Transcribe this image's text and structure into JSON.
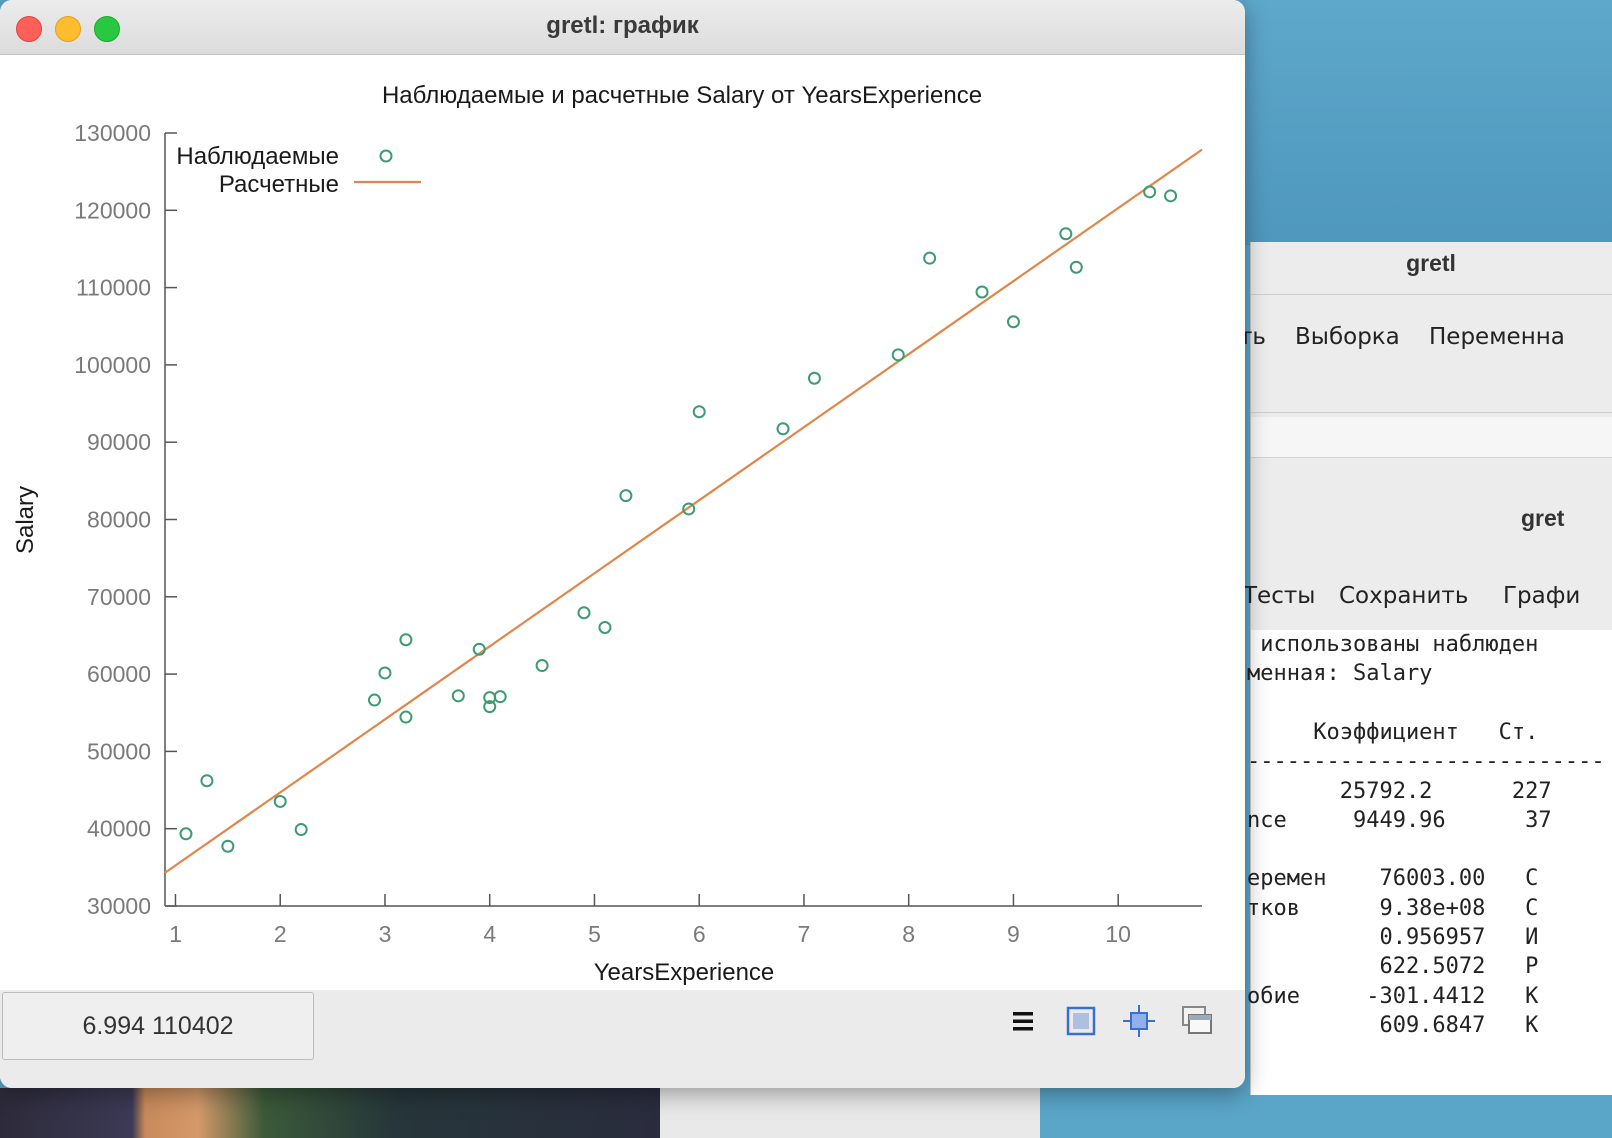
{
  "plot_window": {
    "title": "gretl: график",
    "coordinates": "6.994 110402",
    "toolbar_icons": [
      "menu-icon",
      "zoom-icon",
      "fit-icon",
      "windows-icon"
    ]
  },
  "background_main_window": {
    "title": "gretl",
    "menu": [
      "ть",
      "Выборка",
      "Переменна"
    ]
  },
  "background_model_window": {
    "title": "gret",
    "menu": [
      "Тесты",
      "Сохранить",
      "Графи"
    ],
    "output_lines": [
      " использованы наблюден",
      "менная: Salary",
      "",
      "     Коэффициент   Ст.",
      "---------------------------",
      "       25792.2      227",
      "nce     9449.96      37",
      "",
      "еремен    76003.00   С",
      "тков      9.38e+08   С",
      "          0.956957   И",
      "          622.5072   Р",
      "обие     -301.4412   К",
      "          609.6847   К"
    ]
  },
  "chart_data": {
    "type": "scatter",
    "title": "Наблюдаемые и расчетные Salary от YearsExperience",
    "xlabel": "YearsExperience",
    "ylabel": "Salary",
    "xlim": [
      0.9,
      10.8
    ],
    "ylim": [
      30000,
      130000
    ],
    "xticks": [
      1,
      2,
      3,
      4,
      5,
      6,
      7,
      8,
      9,
      10
    ],
    "yticks": [
      30000,
      40000,
      50000,
      60000,
      70000,
      80000,
      90000,
      100000,
      110000,
      120000,
      130000
    ],
    "legend_position": "top-left",
    "series": [
      {
        "name": "Наблюдаемые",
        "kind": "points",
        "color": "#3d9b73",
        "x": [
          1.1,
          1.3,
          1.5,
          2.0,
          2.2,
          2.9,
          3.0,
          3.2,
          3.2,
          3.7,
          3.9,
          4.0,
          4.0,
          4.1,
          4.5,
          4.9,
          5.1,
          5.3,
          5.9,
          6.0,
          6.8,
          7.1,
          7.9,
          8.2,
          8.7,
          9.0,
          9.5,
          9.6,
          10.3,
          10.5
        ],
        "y": [
          39343,
          46205,
          37731,
          43525,
          39891,
          56642,
          60150,
          54445,
          64445,
          57189,
          63218,
          55794,
          56957,
          57081,
          61111,
          67938,
          66029,
          83088,
          81363,
          93940,
          91738,
          98273,
          101302,
          113812,
          109431,
          105582,
          116969,
          112635,
          122391,
          121872
        ]
      },
      {
        "name": "Расчетные",
        "kind": "line",
        "color": "#e0864a",
        "intercept": 25792.2,
        "slope": 9449.96
      }
    ]
  }
}
